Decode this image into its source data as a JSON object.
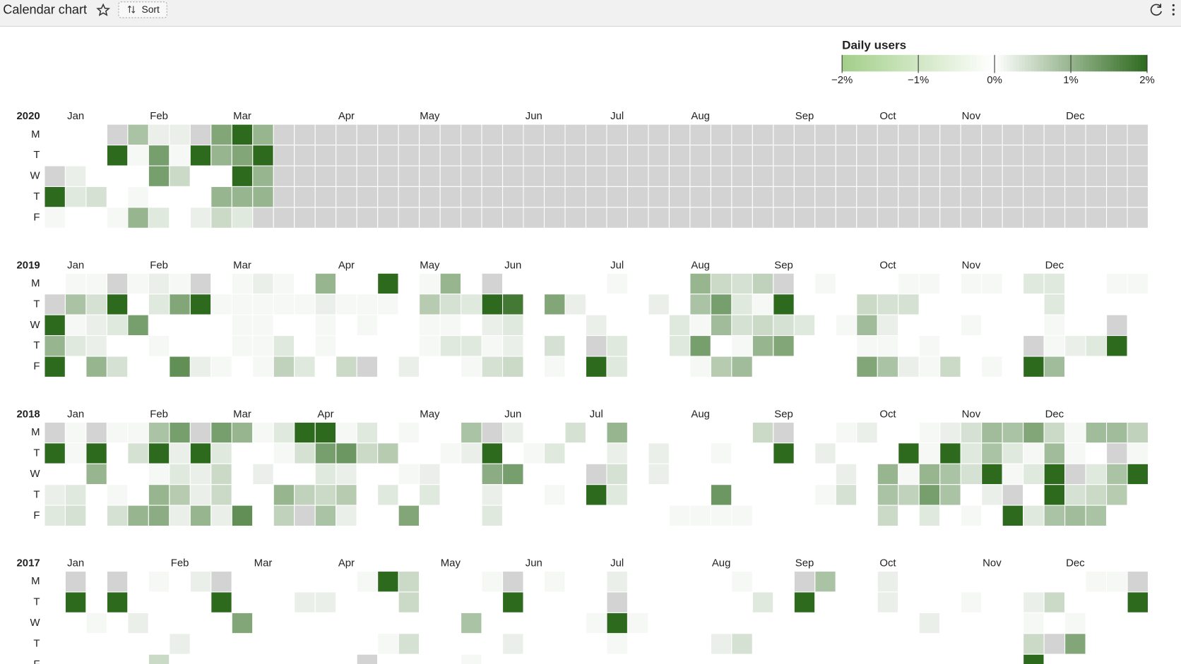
{
  "header": {
    "title": "Calendar chart",
    "sort": "Sort"
  },
  "chart_data": {
    "type": "calendar",
    "title": "Daily users",
    "clim": [
      -2,
      2
    ],
    "cticks": [
      {
        "value": -2,
        "label": "−2%"
      },
      {
        "value": -1,
        "label": "−1%"
      },
      {
        "value": 0,
        "label": "0%"
      },
      {
        "value": 1,
        "label": "1%"
      },
      {
        "value": 2,
        "label": "2%"
      }
    ],
    "min_color": "#a3cf8a",
    "mid_color": "#ffffff",
    "max_color": "#2e6a1e",
    "missing_color": "#d3d3d3",
    "weekdays": [
      "M",
      "T",
      "W",
      "T",
      "F"
    ],
    "months": [
      "Jan",
      "Feb",
      "Mar",
      "Apr",
      "May",
      "Jun",
      "Jul",
      "Aug",
      "Sep",
      "Oct",
      "Nov",
      "Dec"
    ],
    "years": [
      {
        "year": 2020,
        "values": [
          [
            0,
            0,
            0,
            null,
            0.8,
            0.2,
            0.2,
            null,
            1.2,
            2,
            1,
            null,
            null,
            null,
            null,
            null,
            null,
            null,
            null,
            null,
            null,
            null,
            null,
            null,
            null,
            null,
            null,
            null,
            null,
            null,
            null,
            null,
            null,
            null,
            null,
            null,
            null,
            null,
            null,
            null,
            null,
            null,
            null,
            null,
            null,
            null,
            null,
            null,
            null,
            null,
            null,
            null,
            null
          ],
          [
            0,
            0,
            0,
            2,
            0.1,
            1.3,
            0.1,
            2,
            1,
            1.2,
            2,
            null,
            null,
            null,
            null,
            null,
            null,
            null,
            null,
            null,
            null,
            null,
            null,
            null,
            null,
            null,
            null,
            null,
            null,
            null,
            null,
            null,
            null,
            null,
            null,
            null,
            null,
            null,
            null,
            null,
            null,
            null,
            null,
            null,
            null,
            null,
            null,
            null,
            null,
            null,
            null,
            null,
            null
          ],
          [
            null,
            0.2,
            0,
            0,
            0,
            1.3,
            0.5,
            0,
            0,
            2,
            1,
            null,
            null,
            null,
            null,
            null,
            null,
            null,
            null,
            null,
            null,
            null,
            null,
            null,
            null,
            null,
            null,
            null,
            null,
            null,
            null,
            null,
            null,
            null,
            null,
            null,
            null,
            null,
            null,
            null,
            null,
            null,
            null,
            null,
            null,
            null,
            null,
            null,
            null,
            null,
            null,
            null,
            null
          ],
          [
            2,
            0.3,
            0.4,
            0,
            0.1,
            0,
            0,
            0,
            1,
            1,
            1,
            null,
            null,
            null,
            null,
            null,
            null,
            null,
            null,
            null,
            null,
            null,
            null,
            null,
            null,
            null,
            null,
            null,
            null,
            null,
            null,
            null,
            null,
            null,
            null,
            null,
            null,
            null,
            null,
            null,
            null,
            null,
            null,
            null,
            null,
            null,
            null,
            null,
            null,
            null,
            null,
            null,
            null
          ],
          [
            0.1,
            0,
            0,
            0.1,
            1,
            0.3,
            0,
            0.2,
            0.5,
            0.3,
            null,
            null,
            null,
            null,
            null,
            null,
            null,
            null,
            null,
            null,
            null,
            null,
            null,
            null,
            null,
            null,
            null,
            null,
            null,
            null,
            null,
            null,
            null,
            null,
            null,
            null,
            null,
            null,
            null,
            null,
            null,
            null,
            null,
            null,
            null,
            null,
            null,
            null,
            null,
            null,
            null,
            null,
            null
          ]
        ]
      },
      {
        "year": 2019,
        "values": [
          [
            0,
            0.1,
            0.1,
            null,
            0.1,
            0.2,
            0.1,
            null,
            0,
            0.1,
            0.2,
            0.1,
            0,
            1,
            0,
            0,
            2,
            0,
            0.1,
            1,
            0,
            null,
            0,
            0,
            0,
            0,
            0,
            0.1,
            0,
            0,
            0,
            1,
            0.5,
            0.4,
            0.6,
            null,
            0,
            0.1,
            0,
            0,
            0,
            0.1,
            0.1,
            0,
            0.1,
            0.1,
            0,
            0.3,
            0.3,
            0,
            0,
            0.1,
            0.1
          ],
          [
            null,
            0.8,
            0.4,
            2,
            0,
            0.3,
            1.2,
            2,
            0.1,
            0.1,
            0.1,
            0.1,
            0.1,
            0.2,
            0.1,
            0.1,
            0.1,
            0,
            0.7,
            0.4,
            0.3,
            2,
            1.8,
            0,
            1.2,
            0.2,
            0,
            0,
            0,
            0.2,
            0,
            0.8,
            1.3,
            0.3,
            0.1,
            2,
            0,
            0,
            0,
            0.5,
            0.4,
            0.4,
            0,
            0,
            0,
            0,
            0,
            0,
            0.3,
            0,
            0,
            0,
            0
          ],
          [
            2,
            0.1,
            0.2,
            0.3,
            1.3,
            0,
            0,
            0,
            0,
            0.1,
            0.1,
            0,
            0,
            0.1,
            0,
            0.1,
            0,
            0,
            0.1,
            0.1,
            0,
            0.2,
            0.3,
            0,
            0,
            0,
            0.2,
            0,
            0,
            0,
            0.3,
            0.1,
            0.9,
            0.4,
            0.5,
            0.4,
            0.3,
            0,
            0.1,
            0.9,
            0.2,
            0,
            0,
            0,
            0.1,
            0,
            0,
            0,
            0.1,
            0,
            0,
            null,
            0
          ],
          [
            1,
            0.3,
            0.2,
            0,
            0,
            0.1,
            0,
            0,
            0,
            0.1,
            0.1,
            0.3,
            0,
            0.1,
            0,
            0,
            0,
            0,
            0.1,
            0.3,
            0.3,
            0.1,
            0.2,
            0,
            0.4,
            0,
            null,
            0.3,
            0,
            0,
            0.3,
            1.3,
            0,
            0.1,
            1,
            1.2,
            0,
            0,
            0,
            0.1,
            0.1,
            0,
            0.1,
            0,
            0,
            0,
            0,
            null,
            0.1,
            0.2,
            0.3,
            2,
            0
          ],
          [
            2,
            0,
            1,
            0.4,
            0,
            0,
            1.5,
            0.2,
            0.1,
            0,
            0.1,
            0.6,
            0.3,
            0,
            0.5,
            null,
            0,
            0.2,
            0,
            0,
            0.1,
            0.4,
            0.5,
            0,
            0.1,
            0,
            2,
            0.3,
            0,
            0,
            0,
            0.1,
            0.7,
            0.9,
            0,
            0,
            0,
            0,
            0,
            1.2,
            0.8,
            0.2,
            0.1,
            0.5,
            0,
            0.1,
            0,
            2,
            0.9,
            0,
            0,
            0,
            0
          ]
        ]
      },
      {
        "year": 2018,
        "values": [
          [
            null,
            0.1,
            null,
            0.1,
            0.1,
            0.8,
            1.3,
            null,
            1.3,
            1,
            0.1,
            0.3,
            2,
            2,
            0.1,
            0.3,
            0,
            0.1,
            0,
            0,
            0.8,
            null,
            0.2,
            0,
            0,
            0.4,
            0,
            1,
            0,
            0,
            0,
            0,
            0,
            0,
            0.5,
            null,
            0,
            0,
            0.1,
            0.2,
            0,
            0,
            0.1,
            0.2,
            0.4,
            0.9,
            0.8,
            1.2,
            0.5,
            0.1,
            0.9,
            0.9,
            0.6
          ],
          [
            2,
            0.1,
            2,
            0,
            0.4,
            2,
            0.2,
            2,
            0.3,
            0,
            0,
            0.1,
            0.4,
            1.3,
            1.4,
            0.5,
            0.7,
            0,
            0,
            0.1,
            0.2,
            2,
            0,
            0.1,
            0.3,
            0,
            0,
            0.2,
            0,
            0.2,
            0,
            0,
            0.1,
            0,
            0,
            2,
            0,
            0.2,
            0,
            0,
            0,
            2,
            0.1,
            2,
            0.3,
            0.8,
            0.3,
            0.1,
            0.9,
            0.1,
            0,
            null,
            0.1
          ],
          [
            0,
            0,
            1,
            0,
            0,
            0.1,
            0.3,
            0.2,
            0.5,
            0,
            0.2,
            0,
            0,
            0.3,
            0.2,
            0,
            0,
            0.1,
            0.2,
            0,
            0,
            1.1,
            1.3,
            0,
            0,
            0,
            null,
            0.4,
            0,
            0.2,
            0,
            0,
            0,
            0,
            0,
            0,
            0,
            0,
            0.2,
            0,
            1,
            0.1,
            1,
            0.8,
            0.4,
            2,
            0.1,
            0.3,
            2,
            null,
            0.3,
            0.8,
            2
          ],
          [
            0.2,
            0.3,
            0,
            0.1,
            0,
            1,
            0.7,
            0.2,
            0.5,
            0,
            0,
            1,
            0.6,
            0.5,
            0.7,
            0,
            0.3,
            0,
            0.3,
            0,
            0,
            0.2,
            0,
            0,
            0.1,
            0,
            2,
            0.3,
            0,
            0,
            0,
            0,
            1.4,
            0,
            0,
            0,
            0,
            0.1,
            0.4,
            0,
            0.8,
            0.6,
            1.3,
            0.8,
            0,
            0.2,
            null,
            0,
            2,
            0.4,
            0.5,
            0.7,
            0
          ],
          [
            0.3,
            0.4,
            0,
            0.4,
            1,
            1.1,
            0.2,
            1,
            0.2,
            1.5,
            0,
            0.6,
            null,
            0.8,
            0.2,
            0,
            0,
            1.2,
            0,
            0,
            0,
            0.3,
            0,
            0,
            0,
            0,
            0,
            0,
            0,
            0,
            0.1,
            0.1,
            0.1,
            0.1,
            0,
            0,
            0,
            0,
            0,
            0,
            0.5,
            0,
            0.3,
            0,
            0.1,
            0,
            2,
            0.3,
            0.8,
            0.9,
            0.8,
            0,
            0
          ]
        ]
      },
      {
        "year": 2017,
        "values": [
          [
            0,
            null,
            0,
            null,
            0,
            0.1,
            0,
            0.2,
            null,
            0,
            0,
            0,
            0,
            0,
            0,
            0.1,
            2,
            0.5,
            0,
            0,
            0,
            0.1,
            null,
            0,
            0.1,
            0,
            0,
            0.2,
            0,
            0,
            0,
            0,
            0,
            0.1,
            0,
            0,
            null,
            0.8,
            0,
            0,
            0.2,
            0,
            0,
            0,
            0,
            0,
            0,
            0,
            0,
            0,
            0.1,
            0.1,
            null
          ],
          [
            0,
            2,
            0,
            2,
            0,
            0,
            0,
            0,
            2,
            0,
            0,
            0,
            0.2,
            0.2,
            0,
            0,
            0,
            0.5,
            0,
            0,
            0,
            0,
            2,
            0,
            0,
            0,
            0,
            null,
            0,
            0,
            0,
            0,
            0,
            0,
            0.3,
            0,
            2,
            0,
            0,
            0,
            0.2,
            0,
            0,
            0,
            0.1,
            0,
            0,
            0.2,
            0.5,
            0,
            0,
            0,
            2
          ],
          [
            0,
            0,
            0.1,
            0,
            0.2,
            0,
            0,
            0,
            0,
            1.2,
            0,
            0,
            0,
            0,
            0,
            0,
            0,
            0,
            0,
            0,
            0.8,
            0,
            0,
            0,
            0,
            0,
            0.1,
            2,
            0.1,
            0,
            0,
            0,
            0,
            0,
            0,
            0,
            0,
            0,
            0,
            0,
            0,
            0,
            0.2,
            0,
            0,
            0,
            0,
            0.1,
            0,
            0.1,
            0,
            0,
            0
          ],
          [
            0,
            0,
            0,
            0,
            0,
            0,
            0.2,
            0,
            0,
            0,
            0,
            0,
            0,
            0,
            0,
            0,
            0.1,
            0.4,
            0,
            0,
            0,
            0,
            0.2,
            0,
            0,
            0,
            0,
            0.1,
            0,
            0,
            0,
            0,
            0.2,
            0.4,
            0,
            0,
            0,
            0,
            0,
            0,
            0,
            0,
            0,
            0,
            0,
            0,
            0,
            0.5,
            null,
            1.2,
            0,
            0,
            0
          ],
          [
            0,
            0,
            0,
            0,
            0,
            0.5,
            0,
            0,
            0,
            0,
            0,
            0,
            0,
            0,
            0,
            null,
            0,
            0,
            0,
            0,
            0.1,
            0,
            0,
            0,
            0,
            0,
            0,
            0,
            0,
            0,
            0,
            0,
            0,
            0,
            0,
            0,
            0,
            0,
            0,
            0,
            0,
            0,
            0,
            0,
            0,
            0,
            0,
            2,
            0,
            0,
            0,
            0,
            0
          ]
        ]
      }
    ]
  }
}
